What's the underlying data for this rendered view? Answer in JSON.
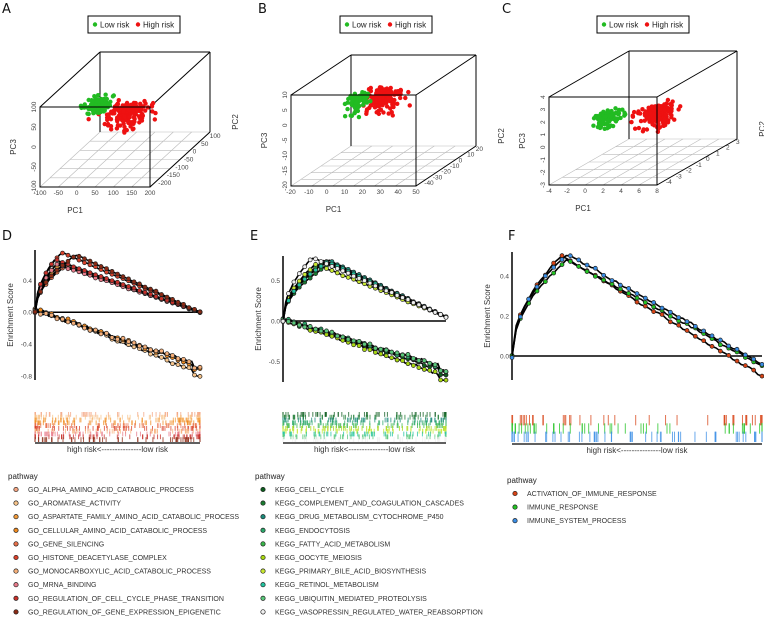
{
  "panels": {
    "A": "A",
    "B": "B",
    "C": "C",
    "D": "D",
    "E": "E",
    "F": "F"
  },
  "colors": {
    "low_risk": "#22bb22",
    "high_risk": "#ee1111",
    "floor_grid": "#bbbbbb"
  },
  "chart_data": [
    {
      "panel": "A",
      "type": "scatter",
      "title": "",
      "legend": [
        "Low risk",
        "High risk"
      ],
      "legend_position": "top",
      "xlabel": "PC1",
      "ylabel": "PC3",
      "zlabel": "PC2",
      "x_ticks": [
        "-100",
        "-50",
        "0",
        "50",
        "100",
        "150",
        "200"
      ],
      "y_ticks": [
        "-100",
        "-50",
        "0",
        "50",
        "100"
      ],
      "z_ticks": [
        "-200",
        "-150",
        "-100",
        "-50",
        "0",
        "50",
        "100"
      ],
      "series": [
        {
          "name": "Low risk",
          "n": 90
        },
        {
          "name": "High risk",
          "n": 160
        }
      ]
    },
    {
      "panel": "B",
      "type": "scatter",
      "title": "",
      "legend": [
        "Low risk",
        "High risk"
      ],
      "legend_position": "top",
      "xlabel": "PC1",
      "ylabel": "PC3",
      "zlabel": "PC2",
      "x_ticks": [
        "-20",
        "-10",
        "0",
        "10",
        "20",
        "30",
        "40",
        "50"
      ],
      "y_ticks": [
        "-20",
        "-15",
        "-10",
        "-5",
        "0",
        "5",
        "10"
      ],
      "z_ticks": [
        "-40",
        "-30",
        "-20",
        "-10",
        "0",
        "10",
        "20"
      ],
      "series": [
        {
          "name": "Low risk",
          "n": 90
        },
        {
          "name": "High risk",
          "n": 160
        }
      ]
    },
    {
      "panel": "C",
      "type": "scatter",
      "title": "",
      "legend": [
        "Low risk",
        "High risk"
      ],
      "legend_position": "top",
      "xlabel": "PC1",
      "ylabel": "PC3",
      "zlabel": "PC2",
      "x_ticks": [
        "-4",
        "-2",
        "0",
        "2",
        "4",
        "6",
        "8"
      ],
      "y_ticks": [
        "-3",
        "-2",
        "-1",
        "0",
        "1",
        "2",
        "3",
        "4"
      ],
      "z_ticks": [
        "-4",
        "-3",
        "-2",
        "-1",
        "0",
        "1",
        "2",
        "3"
      ],
      "series": [
        {
          "name": "Low risk",
          "n": 110
        },
        {
          "name": "High risk",
          "n": 150
        }
      ]
    },
    {
      "panel": "D",
      "type": "line",
      "ylabel": "Enrichment Score",
      "y_ticks": [
        0.4,
        0.0,
        -0.4,
        -0.8
      ],
      "ylim": [
        -0.85,
        0.78
      ],
      "rug_label": "high risk<---------------low risk",
      "legend_title": "pathway",
      "series": [
        {
          "name": "GO_ALPHA_AMINO_ACID_CATABOLIC_PROCESS",
          "color": "#f4a582",
          "peak": [
            0.14,
            0.62
          ],
          "end": 0.0
        },
        {
          "name": "GO_AROMATASE_ACTIVITY",
          "color": "#f7c48a",
          "peak": [
            0.02,
            0.05
          ],
          "end": -0.8
        },
        {
          "name": "GO_ASPARTATE_FAMILY_AMINO_ACID_CATABOLIC_PROCESS",
          "color": "#f39c3c",
          "peak": [
            0.15,
            0.6
          ],
          "end": 0.0
        },
        {
          "name": "GO_CELLULAR_AMINO_ACID_CATABOLIC_PROCESS",
          "color": "#f08a1e",
          "peak": [
            0.02,
            0.04
          ],
          "end": -0.72
        },
        {
          "name": "GO_GENE_SILENCING",
          "color": "#e8704a",
          "peak": [
            0.18,
            0.58
          ],
          "end": 0.0
        },
        {
          "name": "GO_HISTONE_DEACETYLASE_COMPLEX",
          "color": "#d9412a",
          "peak": [
            0.16,
            0.75
          ],
          "end": 0.0
        },
        {
          "name": "GO_MONOCARBOXYLIC_ACID_CATABOLIC_PROCESS",
          "color": "#f6b07a",
          "peak": [
            0.03,
            0.02
          ],
          "end": -0.7
        },
        {
          "name": "GO_MRNA_BINDING",
          "color": "#e87a8a",
          "peak": [
            0.13,
            0.6
          ],
          "end": 0.0
        },
        {
          "name": "GO_REGULATION_OF_CELL_CYCLE_PHASE_TRANSITION",
          "color": "#c8302a",
          "peak": [
            0.12,
            0.66
          ],
          "end": 0.0
        },
        {
          "name": "GO_REGULATION_OF_GENE_EXPRESSION_EPIGENETIC",
          "color": "#8b2a14",
          "peak": [
            0.25,
            0.72
          ],
          "end": 0.0
        }
      ]
    },
    {
      "panel": "E",
      "type": "line",
      "ylabel": "Enrichment Score",
      "y_ticks": [
        0.5,
        0.0,
        -0.5
      ],
      "ylim": [
        -0.75,
        0.8
      ],
      "rug_label": "high risk<---------------low risk",
      "legend_title": "pathway",
      "series": [
        {
          "name": "KEGG_CELL_CYCLE",
          "color": "#0d5c1e",
          "peak": [
            0.02,
            0.02
          ],
          "end": -0.65
        },
        {
          "name": "KEGG_COMPLEMENT_AND_COAGULATION_CASCADES",
          "color": "#1a7a30",
          "peak": [
            0.3,
            0.72
          ],
          "end": 0.05
        },
        {
          "name": "KEGG_DRUG_METABOLISM_CYTOCHROME_P450",
          "color": "#1a8a7a",
          "peak": [
            0.28,
            0.75
          ],
          "end": 0.05
        },
        {
          "name": "KEGG_ENDOCYTOSIS",
          "color": "#2aa86a",
          "peak": [
            0.03,
            0.03
          ],
          "end": -0.62
        },
        {
          "name": "KEGG_FATTY_ACID_METABOLISM",
          "color": "#39b54a",
          "peak": [
            0.25,
            0.74
          ],
          "end": 0.05
        },
        {
          "name": "KEGG_OOCYTE_MEIOSIS",
          "color": "#a8d810",
          "peak": [
            0.02,
            0.02
          ],
          "end": -0.72
        },
        {
          "name": "KEGG_PRIMARY_BILE_ACID_BIOSYNTHESIS",
          "color": "#c8e830",
          "peak": [
            0.2,
            0.7
          ],
          "end": 0.05
        },
        {
          "name": "KEGG_RETINOL_METABOLISM",
          "color": "#22c4a0",
          "peak": [
            0.27,
            0.73
          ],
          "end": 0.05
        },
        {
          "name": "KEGG_UBIQUITIN_MEDIATED_PROTEOLYSIS",
          "color": "#5ac87a",
          "peak": [
            0.03,
            0.02
          ],
          "end": -0.6
        },
        {
          "name": "KEGG_VASOPRESSIN_REGULATED_WATER_REABSORPTION",
          "color": "#f0f0f0",
          "peak": [
            0.18,
            0.78
          ],
          "end": 0.05
        }
      ]
    },
    {
      "panel": "F",
      "type": "line",
      "ylabel": "Enrichment Score",
      "y_ticks": [
        0.4,
        0.2,
        0.0
      ],
      "ylim": [
        -0.12,
        0.52
      ],
      "rug_label": "high risk<---------------low risk",
      "legend_title": "pathway",
      "series": [
        {
          "name": "ACTIVATION_OF_IMMUNE_RESPONSE",
          "color": "#d84315",
          "peak": [
            0.2,
            0.5
          ],
          "end": -0.1
        },
        {
          "name": "IMMUNE_RESPONSE",
          "color": "#22c322",
          "peak": [
            0.22,
            0.48
          ],
          "end": -0.05
        },
        {
          "name": "IMMUNE_SYSTEM_PROCESS",
          "color": "#3a8ee6",
          "peak": [
            0.22,
            0.51
          ],
          "end": -0.04
        }
      ]
    }
  ]
}
